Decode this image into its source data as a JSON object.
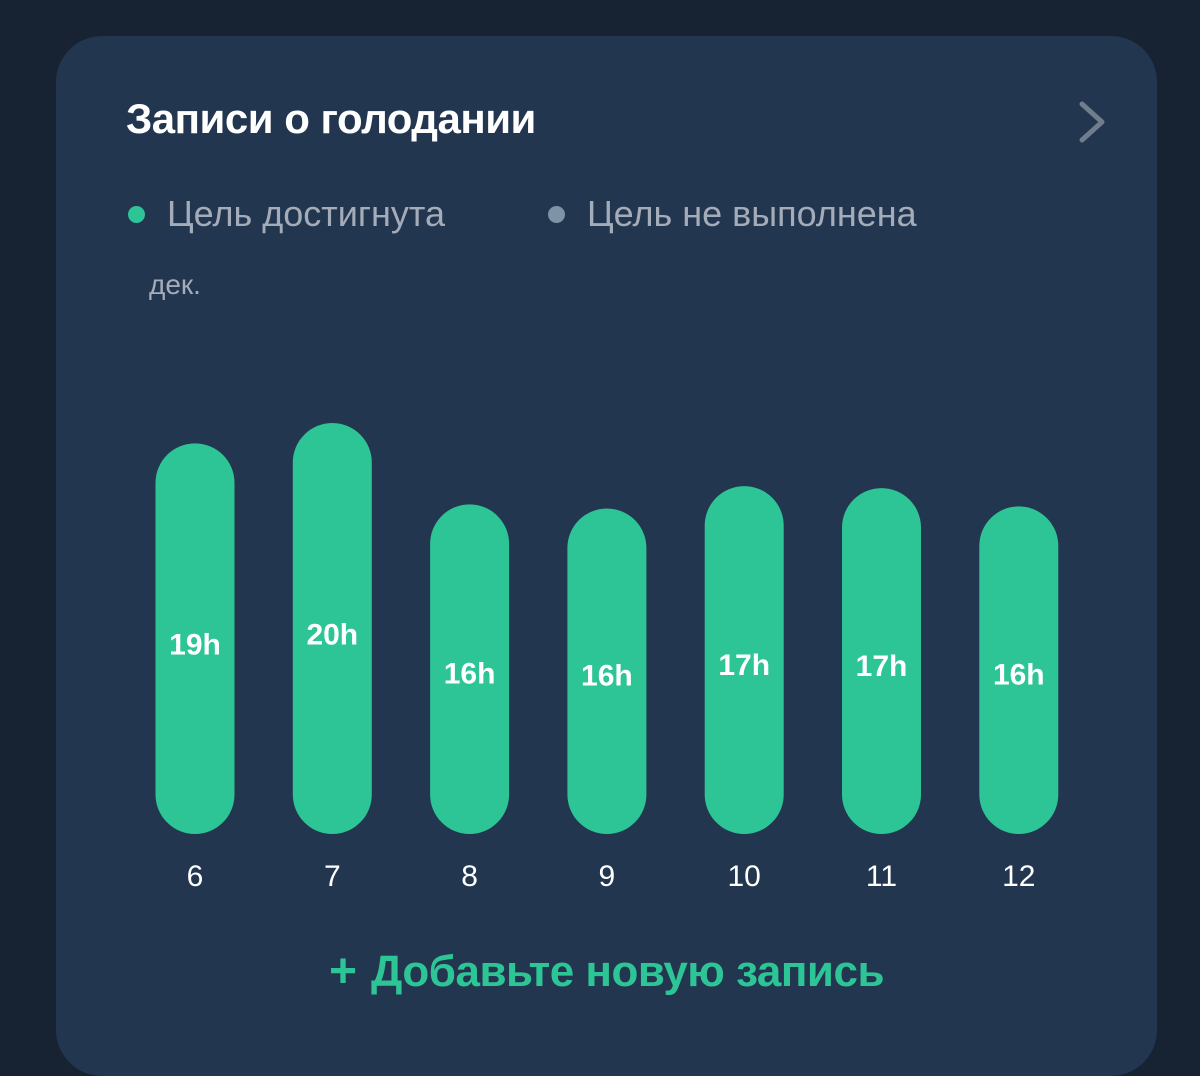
{
  "card": {
    "title": "Записи о голодании",
    "chevron_icon": "chevron-right-icon"
  },
  "legend": {
    "achieved_label": "Цель достигнута",
    "achieved_color": "#2ec596",
    "missed_label": "Цель не выполнена",
    "missed_color": "#7f93a6"
  },
  "month_label": "дек.",
  "chart_data": {
    "type": "bar",
    "categories": [
      "6",
      "7",
      "8",
      "9",
      "10",
      "11",
      "12"
    ],
    "values": [
      19.2,
      20.2,
      16.2,
      16.0,
      17.1,
      17.0,
      16.1
    ],
    "value_labels": [
      "19h",
      "20h",
      "16h",
      "16h",
      "17h",
      "17h",
      "16h"
    ],
    "status": [
      "achieved",
      "achieved",
      "achieved",
      "achieved",
      "achieved",
      "achieved",
      "achieved"
    ],
    "ylim": [
      0,
      20.2
    ],
    "grid": false,
    "legend_position": "top-left"
  },
  "add_entry": {
    "icon": "plus-icon",
    "plus_glyph": "+",
    "label": "Добавьте новую запись"
  }
}
